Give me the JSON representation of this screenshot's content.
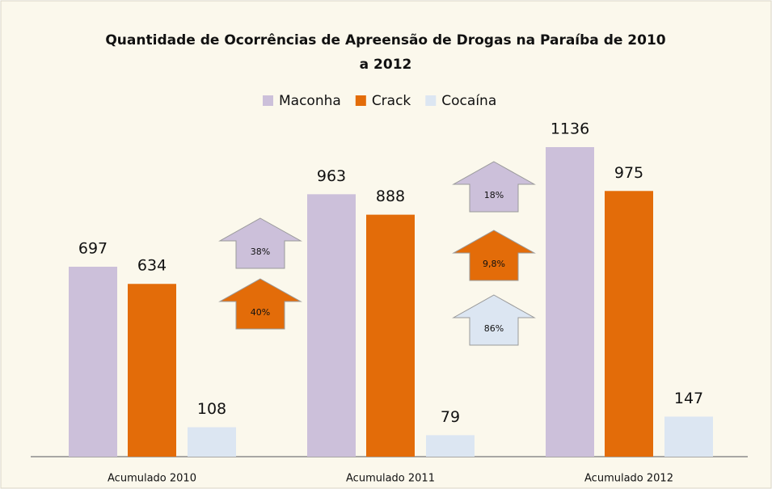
{
  "chart_data": {
    "type": "bar",
    "title": "Quantidade de Ocorrências de Apreensão de Drogas na Paraíba de 2010 a 2012",
    "categories": [
      "Acumulado 2010",
      "Acumulado 2011",
      "Acumulado 2012"
    ],
    "series": [
      {
        "name": "Maconha",
        "color": "#ccc0da",
        "values": [
          697,
          963,
          1136
        ]
      },
      {
        "name": "Crack",
        "color": "#e36c09",
        "values": [
          634,
          888,
          975
        ]
      },
      {
        "name": "Cocaína",
        "color": "#dce6f2",
        "values": [
          108,
          79,
          147
        ]
      }
    ],
    "legend": "top",
    "annotations": [
      {
        "text": "38%",
        "color": "#ccc0da"
      },
      {
        "text": "40%",
        "color": "#e36c09"
      },
      {
        "text": "18%",
        "color": "#ccc0da"
      },
      {
        "text": "9,8%",
        "color": "#e36c09"
      },
      {
        "text": "86%",
        "color": "#dce6f2"
      }
    ]
  }
}
